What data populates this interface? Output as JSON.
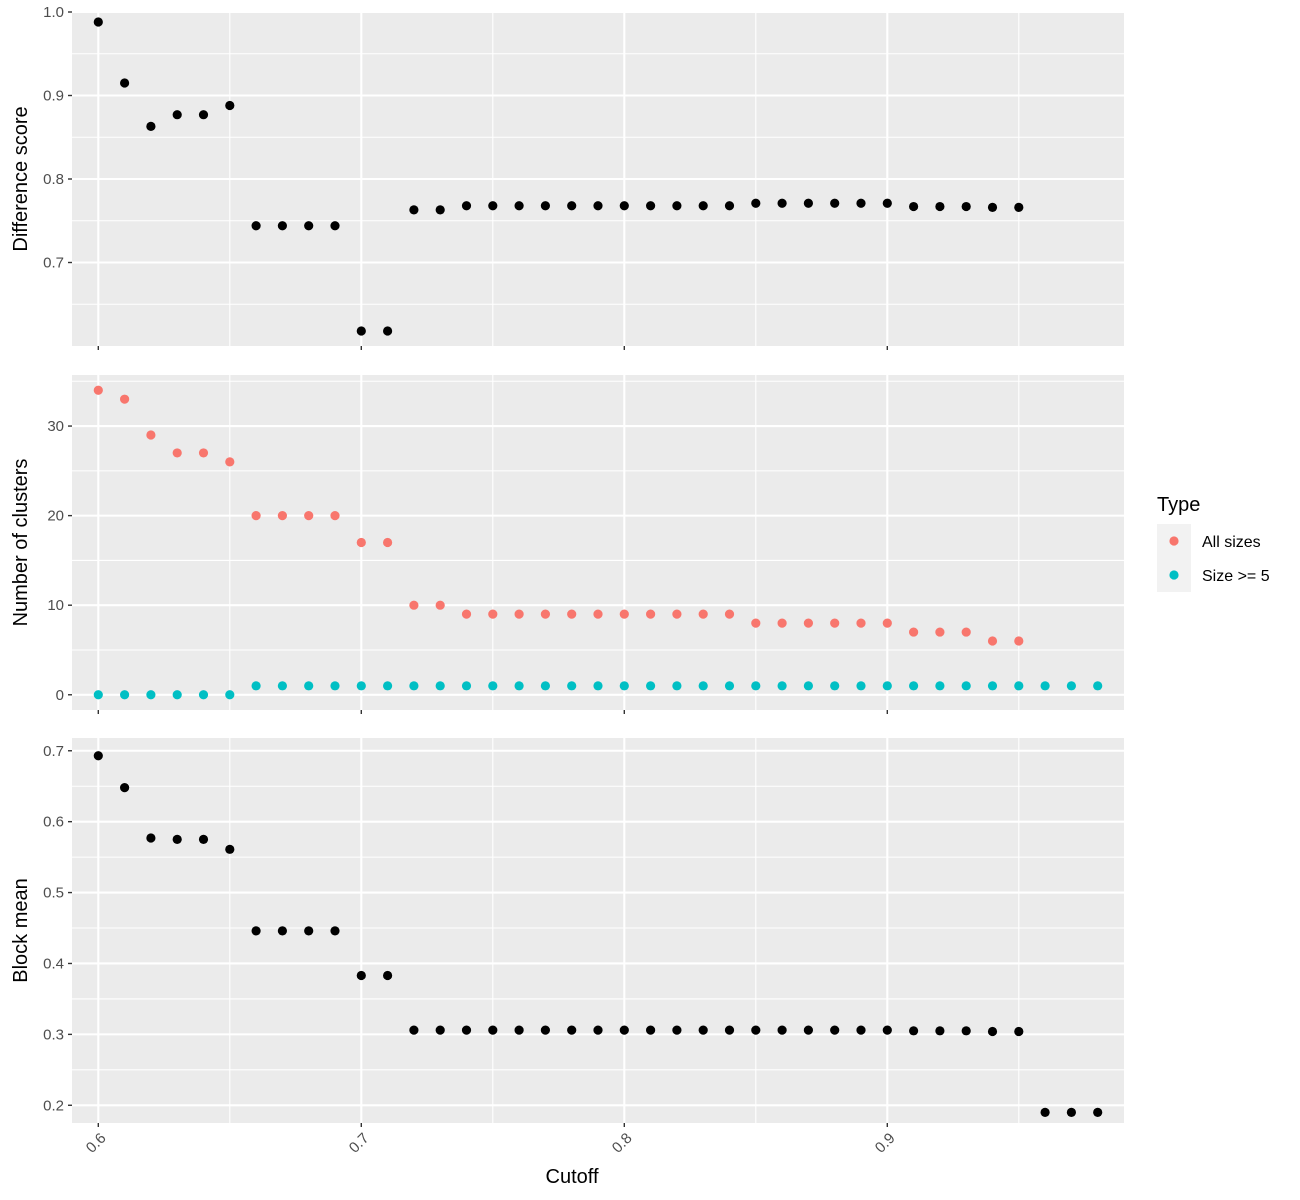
{
  "chart_data": [
    {
      "type": "scatter",
      "title": "",
      "xlabel": "",
      "ylabel": "Difference score",
      "xlim": [
        0.59,
        0.99
      ],
      "ylim": [
        0.6,
        1.0
      ],
      "yticks": [
        0.7,
        0.8,
        0.9,
        1.0
      ],
      "ytick_labels": [
        "0.7",
        "0.8",
        "0.9",
        "1.0"
      ],
      "grid": true,
      "series": [
        {
          "color": "#000000",
          "x": [
            0.6,
            0.61,
            0.62,
            0.63,
            0.64,
            0.65,
            0.66,
            0.67,
            0.68,
            0.69,
            0.7,
            0.71,
            0.72,
            0.73,
            0.74,
            0.75,
            0.76,
            0.77,
            0.78,
            0.79,
            0.8,
            0.81,
            0.82,
            0.83,
            0.84,
            0.85,
            0.86,
            0.87,
            0.88,
            0.89,
            0.9,
            0.91,
            0.92,
            0.93,
            0.94,
            0.95
          ],
          "y": [
            0.988,
            0.915,
            0.863,
            0.877,
            0.877,
            0.888,
            0.744,
            0.744,
            0.744,
            0.744,
            0.618,
            0.618,
            0.763,
            0.763,
            0.768,
            0.768,
            0.768,
            0.768,
            0.768,
            0.768,
            0.768,
            0.768,
            0.768,
            0.768,
            0.768,
            0.771,
            0.771,
            0.771,
            0.771,
            0.771,
            0.771,
            0.767,
            0.767,
            0.767,
            0.766,
            0.766
          ]
        }
      ]
    },
    {
      "type": "scatter",
      "title": "",
      "xlabel": "",
      "ylabel": "Number of clusters",
      "xlim": [
        0.59,
        0.99
      ],
      "ylim": [
        -1.7,
        35.7
      ],
      "yticks": [
        0,
        10,
        20,
        30
      ],
      "ytick_labels": [
        "0",
        "10",
        "20",
        "30"
      ],
      "grid": true,
      "legend": {
        "title": "Type",
        "position": "right",
        "entries": [
          {
            "label": "All sizes",
            "color": "#f8766d"
          },
          {
            "label": "Size >= 5",
            "color": "#00bfc4"
          }
        ]
      },
      "series": [
        {
          "name": "All sizes",
          "color": "#f8766d",
          "x": [
            0.6,
            0.61,
            0.62,
            0.63,
            0.64,
            0.65,
            0.66,
            0.67,
            0.68,
            0.69,
            0.7,
            0.71,
            0.72,
            0.73,
            0.74,
            0.75,
            0.76,
            0.77,
            0.78,
            0.79,
            0.8,
            0.81,
            0.82,
            0.83,
            0.84,
            0.85,
            0.86,
            0.87,
            0.88,
            0.89,
            0.9,
            0.91,
            0.92,
            0.93,
            0.94,
            0.95
          ],
          "y": [
            34,
            33,
            29,
            27,
            27,
            26,
            20,
            20,
            20,
            20,
            17,
            17,
            10,
            10,
            9,
            9,
            9,
            9,
            9,
            9,
            9,
            9,
            9,
            9,
            9,
            8,
            8,
            8,
            8,
            8,
            8,
            7,
            7,
            7,
            6,
            6
          ]
        },
        {
          "name": "Size >= 5",
          "color": "#00bfc4",
          "x": [
            0.6,
            0.61,
            0.62,
            0.63,
            0.64,
            0.65,
            0.66,
            0.67,
            0.68,
            0.69,
            0.7,
            0.71,
            0.72,
            0.73,
            0.74,
            0.75,
            0.76,
            0.77,
            0.78,
            0.79,
            0.8,
            0.81,
            0.82,
            0.83,
            0.84,
            0.85,
            0.86,
            0.87,
            0.88,
            0.89,
            0.9,
            0.91,
            0.92,
            0.93,
            0.94,
            0.95,
            0.96,
            0.97,
            0.98
          ],
          "y": [
            0,
            0,
            0,
            0,
            0,
            0,
            1,
            1,
            1,
            1,
            1,
            1,
            1,
            1,
            1,
            1,
            1,
            1,
            1,
            1,
            1,
            1,
            1,
            1,
            1,
            1,
            1,
            1,
            1,
            1,
            1,
            1,
            1,
            1,
            1,
            1,
            1,
            1,
            1
          ]
        }
      ]
    },
    {
      "type": "scatter",
      "title": "",
      "xlabel": "Cutoff",
      "ylabel": "Block mean",
      "xlim": [
        0.59,
        0.99
      ],
      "ylim": [
        0.175,
        0.718
      ],
      "yticks": [
        0.2,
        0.3,
        0.4,
        0.5,
        0.6,
        0.7
      ],
      "ytick_labels": [
        "0.2",
        "0.3",
        "0.4",
        "0.5",
        "0.6",
        "0.7"
      ],
      "xticks": [
        0.6,
        0.7,
        0.8,
        0.9
      ],
      "xtick_labels": [
        "0.6",
        "0.7",
        "0.8",
        "0.9"
      ],
      "grid": true,
      "series": [
        {
          "color": "#000000",
          "x": [
            0.6,
            0.61,
            0.62,
            0.63,
            0.64,
            0.65,
            0.66,
            0.67,
            0.68,
            0.69,
            0.7,
            0.71,
            0.72,
            0.73,
            0.74,
            0.75,
            0.76,
            0.77,
            0.78,
            0.79,
            0.8,
            0.81,
            0.82,
            0.83,
            0.84,
            0.85,
            0.86,
            0.87,
            0.88,
            0.89,
            0.9,
            0.91,
            0.92,
            0.93,
            0.94,
            0.95,
            0.96,
            0.97,
            0.98
          ],
          "y": [
            0.693,
            0.648,
            0.577,
            0.575,
            0.575,
            0.561,
            0.446,
            0.446,
            0.446,
            0.446,
            0.383,
            0.383,
            0.306,
            0.306,
            0.306,
            0.306,
            0.306,
            0.306,
            0.306,
            0.306,
            0.306,
            0.306,
            0.306,
            0.306,
            0.306,
            0.306,
            0.306,
            0.306,
            0.306,
            0.306,
            0.306,
            0.305,
            0.305,
            0.305,
            0.304,
            0.304,
            0.19,
            0.19,
            0.19
          ]
        }
      ]
    }
  ]
}
